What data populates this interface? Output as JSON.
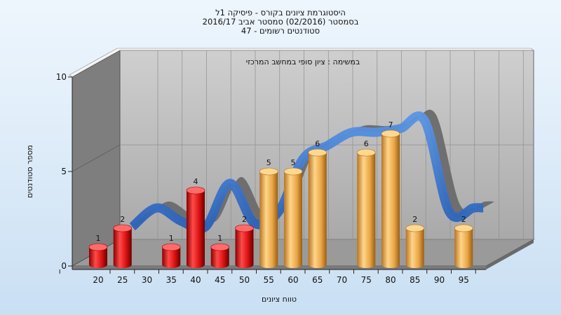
{
  "chart_data": {
    "type": "bar",
    "title": "היסטוגרמת ציונים בקורס - פיסיקה 1ל",
    "subtitle_lines": [
      "בסמסטר  (02/2016)  סמסטר אביב 2016/17",
      "סטודנטים רשומים - 47"
    ],
    "annotation": "במשימה : ציון סופי במחשב המרכזי",
    "xlabel": "טווח ציונים",
    "ylabel": "מספר סטודנטים",
    "x_tick_labels": [
      "20",
      "25",
      "30",
      "35",
      "40",
      "45",
      "50",
      "55",
      "60",
      "65",
      "70",
      "75",
      "80",
      "85",
      "90",
      "95"
    ],
    "y_tick_labels": [
      "0",
      "5",
      "10"
    ],
    "ylim": [
      0,
      10
    ],
    "grid": true,
    "bars": [
      {
        "x": 20,
        "value": 1,
        "label": "1",
        "status": "fail"
      },
      {
        "x": 25,
        "value": 2,
        "label": "2",
        "status": "fail"
      },
      {
        "x": 35,
        "value": 1,
        "label": "1",
        "status": "fail"
      },
      {
        "x": 40,
        "value": 4,
        "label": "4",
        "status": "fail"
      },
      {
        "x": 45,
        "value": 1,
        "label": "1",
        "status": "fail"
      },
      {
        "x": 50,
        "value": 2,
        "label": "2",
        "status": "fail"
      },
      {
        "x": 55,
        "value": 5,
        "label": "5",
        "status": "pass"
      },
      {
        "x": 60,
        "value": 5,
        "label": "5",
        "status": "pass"
      },
      {
        "x": 65,
        "value": 6,
        "label": "6",
        "status": "pass"
      },
      {
        "x": 75,
        "value": 6,
        "label": "6",
        "status": "pass"
      },
      {
        "x": 80,
        "value": 7,
        "label": "7",
        "status": "pass"
      },
      {
        "x": 85,
        "value": 2,
        "label": "2",
        "status": "pass"
      },
      {
        "x": 95,
        "value": 2,
        "label": "2",
        "status": "pass"
      }
    ],
    "curve_points": [
      {
        "x": 25,
        "value": 2
      },
      {
        "x": 30,
        "value": 3
      },
      {
        "x": 35,
        "value": 2.3
      },
      {
        "x": 40,
        "value": 2
      },
      {
        "x": 45,
        "value": 4.3
      },
      {
        "x": 50,
        "value": 2.2
      },
      {
        "x": 55,
        "value": 2.8
      },
      {
        "x": 60,
        "value": 5.6
      },
      {
        "x": 65,
        "value": 6.3
      },
      {
        "x": 70,
        "value": 7
      },
      {
        "x": 75,
        "value": 7
      },
      {
        "x": 80,
        "value": 7.2
      },
      {
        "x": 85,
        "value": 7.6
      },
      {
        "x": 90,
        "value": 2.8
      },
      {
        "x": 95,
        "value": 3
      },
      {
        "x": 97,
        "value": 3
      }
    ],
    "colors": {
      "fail_bar": "#e01818",
      "pass_bar": "#eba84a",
      "curve_front": "#3a7ad0",
      "curve_back": "#6a6a6a",
      "plot_back_wall": "#b8b8b8",
      "plot_side_wall": "#7e7e7e",
      "plot_floor": "#9a9a9a"
    }
  }
}
